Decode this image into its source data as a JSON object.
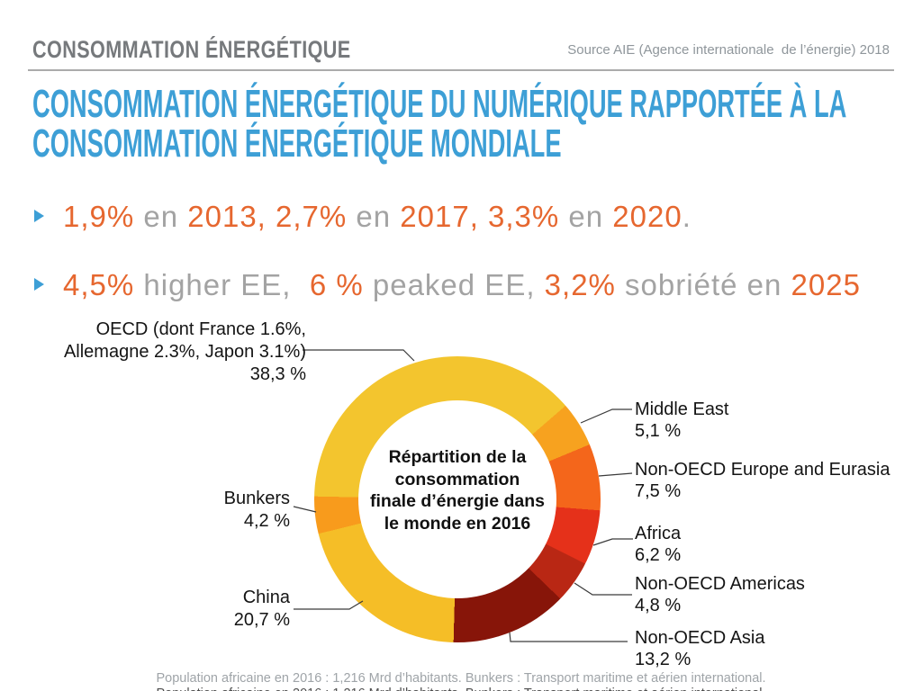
{
  "colors": {
    "title_blue": "#3D9FD6",
    "accent_orange": "#E6672F",
    "muted_grey": "#A3A3A3",
    "header_grey": "#76797C",
    "source_grey": "#8F969B",
    "label_black": "#141414",
    "footer_grey": "#9FA4A8"
  },
  "header": {
    "title": "CONSOMMATION ÉNERGÉTIQUE",
    "source": "Source AIE (Agence internationale  de l’énergie) 2018"
  },
  "main_title": {
    "line1": "CONSOMMATION ÉNERGÉTIQUE DU NUMÉRIQUE RAPPORTÉE À LA",
    "line2": "CONSOMMATION ÉNERGÉTIQUE MONDIALE"
  },
  "bullets": [
    {
      "segments": [
        {
          "t": "1,9%",
          "c": "accent"
        },
        {
          "t": " en ",
          "c": "muted"
        },
        {
          "t": "2013, 2,7%",
          "c": "accent"
        },
        {
          "t": " en ",
          "c": "muted"
        },
        {
          "t": "2017, 3,3%",
          "c": "accent"
        },
        {
          "t": " en ",
          "c": "muted"
        },
        {
          "t": "2020",
          "c": "accent"
        },
        {
          "t": ".",
          "c": "muted"
        }
      ]
    },
    {
      "segments": [
        {
          "t": "4,5%",
          "c": "accent"
        },
        {
          "t": " higher EE,  ",
          "c": "muted"
        },
        {
          "t": "6 %",
          "c": "accent"
        },
        {
          "t": " peaked EE, ",
          "c": "muted"
        },
        {
          "t": "3,2%",
          "c": "accent"
        },
        {
          "t": " sobriété en ",
          "c": "muted"
        },
        {
          "t": "2025",
          "c": "accent"
        }
      ]
    }
  ],
  "chart_data": {
    "type": "pie",
    "donut": true,
    "title": "Répartition de la consommation finale d’énergie dans le monde en 2016",
    "center_lines": [
      "Répartition de la",
      "consommation",
      "finale d’énergie dans",
      "le monde en 2016"
    ],
    "unit": "%",
    "start_angle_deg": 271.2,
    "segments": [
      {
        "label": "OECD (dont France 1.6%, Allemagne 2.3%, Japon 3.1%)",
        "value": 38.3,
        "display": "38,3 %",
        "color": "#F3C52E"
      },
      {
        "label": "Middle East",
        "value": 5.1,
        "display": "5,1 %",
        "color": "#F7A21F"
      },
      {
        "label": "Non-OECD Europe and Eurasia",
        "value": 7.5,
        "display": "7,5 %",
        "color": "#F4661B"
      },
      {
        "label": "Africa",
        "value": 6.2,
        "display": "6,2 %",
        "color": "#E5311A"
      },
      {
        "label": "Non-OECD Americas",
        "value": 4.8,
        "display": "4,8 %",
        "color": "#B92714"
      },
      {
        "label": "Non-OECD Asia",
        "value": 13.2,
        "display": "13,2 %",
        "color": "#871509"
      },
      {
        "label": "China",
        "value": 20.7,
        "display": "20,7 %",
        "color": "#F5BE27"
      },
      {
        "label": "Bunkers",
        "value": 4.2,
        "display": "4,2 %",
        "color": "#F89B1C"
      }
    ],
    "labels": {
      "oecd": {
        "line1": "OECD (dont France 1.6%,",
        "line2": "Allemagne 2.3%, Japon 3.1%)",
        "value": "38,3 %"
      },
      "middle_east": {
        "name": "Middle East",
        "value": "5,1 %"
      },
      "eurasia": {
        "name": "Non-OECD Europe and Eurasia",
        "value": "7,5 %"
      },
      "africa": {
        "name": "Africa",
        "value": "6,2 %"
      },
      "americas": {
        "name": "Non-OECD Americas",
        "value": "4,8 %"
      },
      "asia": {
        "name": "Non-OECD Asia",
        "value": "13,2 %"
      },
      "china": {
        "name": "China",
        "value": "20,7 %"
      },
      "bunkers": {
        "name": "Bunkers",
        "value": "4,2 %"
      }
    }
  },
  "footer": {
    "text": "Population africaine en 2016 : 1,216 Mrd d’habitants. Bunkers : Transport maritime et aérien international."
  }
}
